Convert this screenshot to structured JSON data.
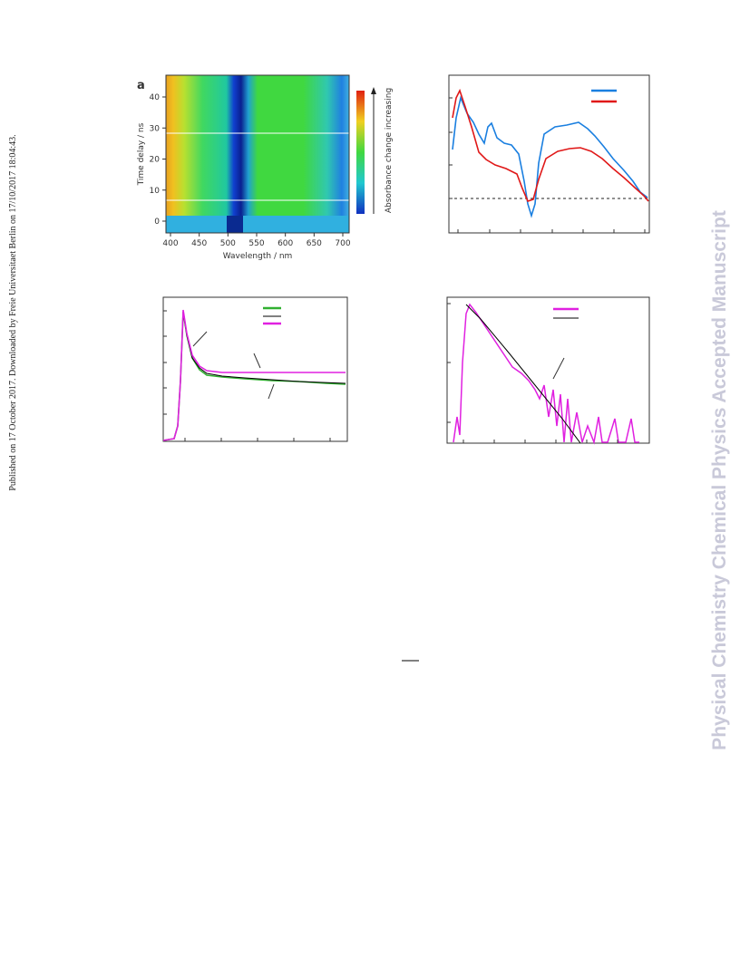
{
  "side_note": "Published on 17 October 2017. Downloaded by Freie Universitaet Berlin on 17/10/2017 18:04:43.",
  "watermark": "Physical Chemistry Chemical Physics Accepted Manuscript",
  "figure_a": {
    "panel_label": "a",
    "y_label": "Time delay / ns",
    "x_label": "Wavelength / nm",
    "colorbar_label": "Absorbance change increasing",
    "yticks": [
      0,
      10,
      20,
      30,
      40
    ],
    "xticks": [
      400,
      450,
      500,
      550,
      600,
      650,
      700
    ]
  }
}
